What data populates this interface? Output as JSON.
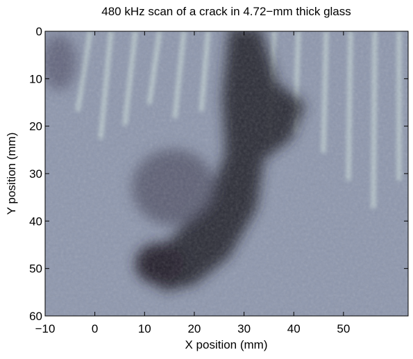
{
  "chart_data": {
    "type": "image",
    "title": "480 kHz scan of a crack in 4.72−mm thick glass",
    "x_label": "X position (mm)",
    "y_label": "Y position (mm)",
    "xlim": [
      -10,
      63
    ],
    "xticks": [
      {
        "value": -10,
        "label": "−10"
      },
      0,
      10,
      20,
      30,
      40,
      50
    ],
    "ylim": [
      0,
      60
    ],
    "yticks": [
      0,
      10,
      20,
      30,
      40,
      50,
      60
    ],
    "y_reversed": true
  }
}
